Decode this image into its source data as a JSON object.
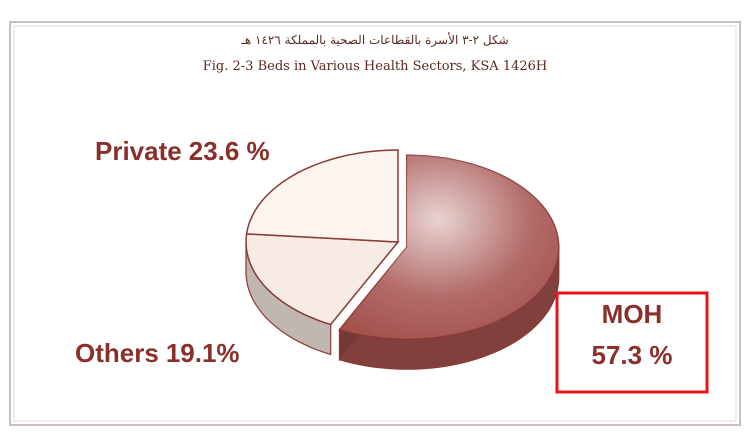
{
  "chart_data": {
    "type": "pie",
    "title": "شكل ٢-٣ الأسرة بالقطاعات الصحية بالمملكة ١٤٢٦ هـ",
    "subtitle": "Fig. 2-3 Beds in Various Health Sectors, KSA 1426H",
    "categories": [
      "MOH",
      "Others",
      "Private"
    ],
    "values": [
      57.3,
      19.1,
      23.6
    ],
    "value_labels": [
      "57.3 %",
      "19.1%",
      "23.6 %"
    ],
    "colors": [
      "#a5524e",
      "#f6ebe5",
      "#fbf4ef"
    ]
  }
}
